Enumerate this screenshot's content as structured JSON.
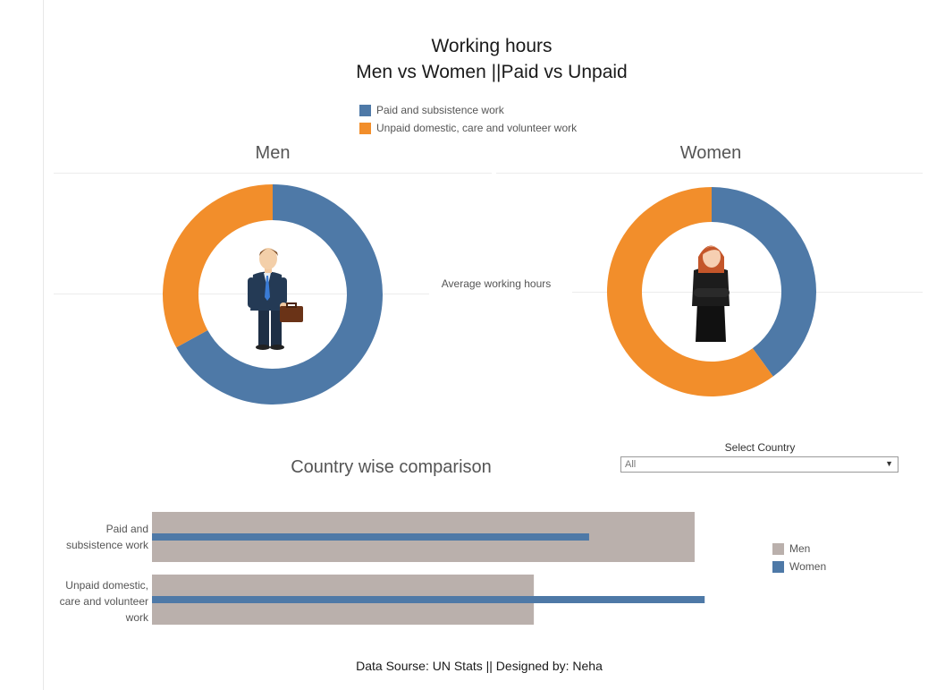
{
  "header": {
    "title_line1": "Working hours",
    "title_line2": "Men vs Women ||Paid vs Unpaid"
  },
  "legend_top": [
    {
      "label": "Paid and subsistence work",
      "color": "#4e79a7"
    },
    {
      "label": "Unpaid domestic, care and volunteer work",
      "color": "#f28e2b"
    }
  ],
  "center_label": "Average working hours",
  "men_chart": {
    "title": "Men",
    "icon": "businessman-with-briefcase-icon"
  },
  "women_chart": {
    "title": "Women",
    "icon": "businesswoman-icon"
  },
  "comparison": {
    "title": "Country wise comparison",
    "select_label": "Select Country",
    "select_value": "All",
    "legend": [
      {
        "label": "Men",
        "color": "#bab0ac"
      },
      {
        "label": "Women",
        "color": "#4e79a7"
      }
    ]
  },
  "footer": "Data Sourse: UN Stats || Designed by: Neha",
  "chart_data": [
    {
      "type": "pie",
      "title": "Men",
      "donut": true,
      "series": [
        {
          "name": "Paid and subsistence work",
          "value": 67,
          "color": "#4e79a7"
        },
        {
          "name": "Unpaid domestic, care and volunteer work",
          "value": 33,
          "color": "#f28e2b"
        }
      ]
    },
    {
      "type": "pie",
      "title": "Women",
      "donut": true,
      "series": [
        {
          "name": "Paid and subsistence work",
          "value": 40,
          "color": "#4e79a7"
        },
        {
          "name": "Unpaid domestic, care and volunteer work",
          "value": 60,
          "color": "#f28e2b"
        }
      ]
    },
    {
      "type": "bar",
      "orientation": "horizontal",
      "title": "Country wise comparison",
      "categories": [
        "Paid and subsistence work",
        "Unpaid domestic, care and volunteer work"
      ],
      "category_label_lines": [
        [
          "Paid and",
          "subsistence work"
        ],
        [
          "Unpaid domestic,",
          "care and volunteer",
          "work"
        ]
      ],
      "series": [
        {
          "name": "Men",
          "values": [
            5.4,
            3.8
          ],
          "color": "#bab0ac"
        },
        {
          "name": "Women",
          "values": [
            4.35,
            5.5
          ],
          "color": "#4e79a7"
        }
      ],
      "xlim": [
        0,
        6
      ],
      "grid": false,
      "legend_position": "right"
    }
  ]
}
